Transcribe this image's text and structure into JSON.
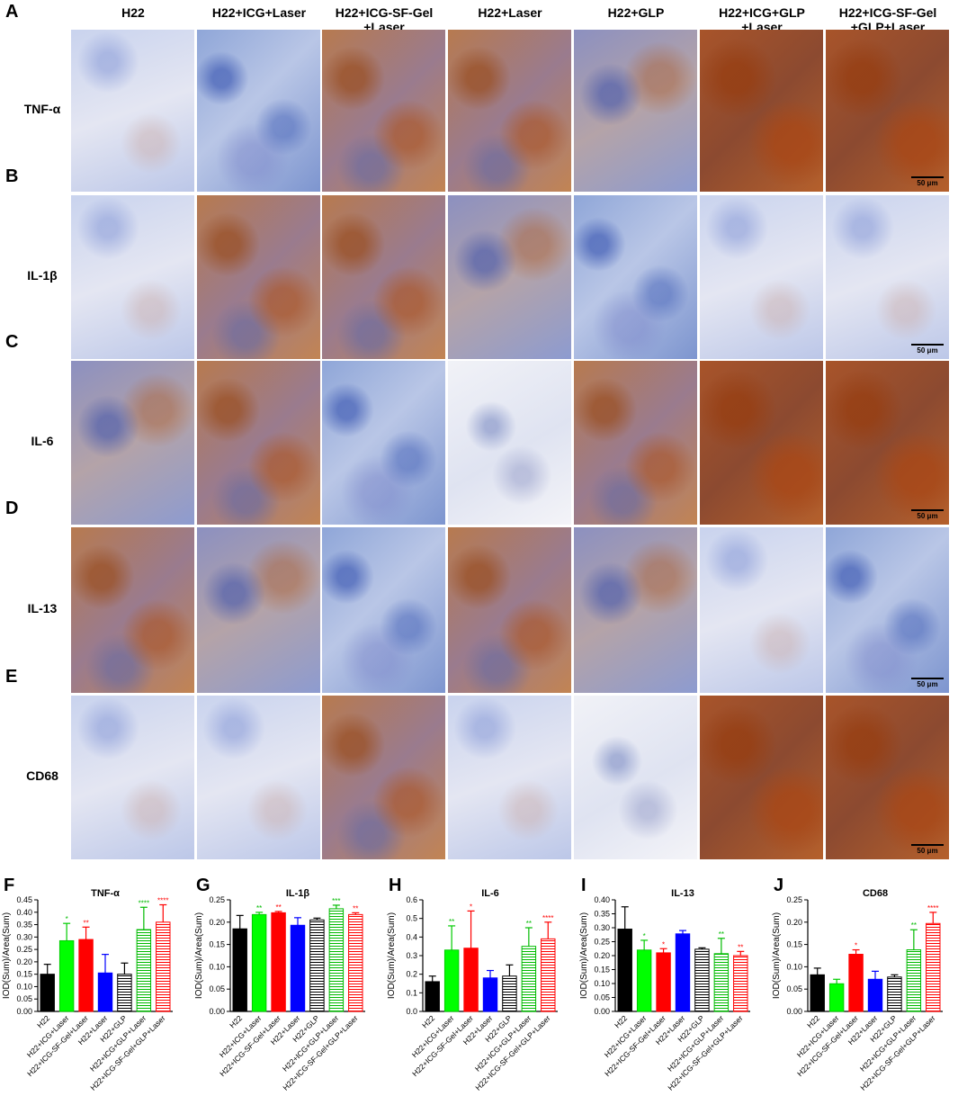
{
  "columns": [
    "H22",
    "H22+ICG+Laser",
    "H22+ICG-SF-Gel\n+Laser",
    "H22+Laser",
    "H22+GLP",
    "H22+ICG+GLP\n+Laser",
    "H22+ICG-SF-Gel\n+GLP+Laser"
  ],
  "rows": [
    {
      "letter": "A",
      "label": "TNF-α",
      "tones": [
        "pale",
        "blue",
        "brown",
        "brown",
        "mixed",
        "dark",
        "dark"
      ]
    },
    {
      "letter": "B",
      "label": "IL-1β",
      "tones": [
        "pale",
        "brown",
        "brown",
        "mixed",
        "blue",
        "pale",
        "pale"
      ]
    },
    {
      "letter": "C",
      "label": "IL-6",
      "tones": [
        "mixed",
        "brown",
        "blue",
        "light",
        "brown",
        "dark",
        "dark"
      ]
    },
    {
      "letter": "D",
      "label": "IL-13",
      "tones": [
        "brown",
        "mixed",
        "blue",
        "brown",
        "mixed",
        "pale",
        "blue"
      ]
    },
    {
      "letter": "E",
      "label": "CD68",
      "tones": [
        "pale",
        "pale",
        "brown",
        "pale",
        "light",
        "dark",
        "dark"
      ]
    }
  ],
  "scalebar": "50 μm",
  "tone_colors": {
    "blue": "#8fa6d8",
    "pale": "#d3dbef",
    "brown": "#b77a4f",
    "dark": "#a8542a",
    "mixed": "#a29ab8",
    "light": "#eceef6"
  },
  "ylabel": "IOD(Sum)/Area(Sum)",
  "chart_data": [
    {
      "letter": "F",
      "type": "bar",
      "title": "TNF-α",
      "ylabel": "IOD(Sum)/Area(Sum)",
      "ylim": [
        0,
        0.45
      ],
      "yticks": [
        "0.00",
        "0.05",
        "0.10",
        "0.15",
        "0.20",
        "0.25",
        "0.30",
        "0.35",
        "0.40",
        "0.45"
      ],
      "categories": [
        "H22",
        "H22+ICG+Laser",
        "H22+ICG-SF-Gel+Laser",
        "H22+Laser",
        "H22+GLP",
        "H22+ICG+GLP+Laser",
        "H22+ICG-SF-Gel+GLP+Laser"
      ],
      "values": [
        0.15,
        0.285,
        0.29,
        0.155,
        0.15,
        0.33,
        0.36
      ],
      "errors": [
        0.04,
        0.07,
        0.05,
        0.075,
        0.045,
        0.09,
        0.07
      ],
      "stars": [
        "",
        "*",
        "**",
        "",
        "",
        "****",
        "****"
      ]
    },
    {
      "letter": "G",
      "type": "bar",
      "title": "IL-1β",
      "ylabel": "IOD(Sum)/Area(Sum)",
      "ylim": [
        0,
        0.25
      ],
      "yticks": [
        "0.00",
        "0.05",
        "0.10",
        "0.15",
        "0.20",
        "0.25"
      ],
      "categories": [
        "H22",
        "H22+ICG+Laser",
        "H22+ICG-SF-Gel+Laser",
        "H22+Laser",
        "H22+GLP",
        "H22+ICG+GLP+Laser",
        "H22+ICG-SF-Gel+GLP+Laser"
      ],
      "values": [
        0.185,
        0.217,
        0.221,
        0.193,
        0.205,
        0.23,
        0.217
      ],
      "errors": [
        0.03,
        0.005,
        0.003,
        0.017,
        0.004,
        0.008,
        0.004
      ],
      "stars": [
        "",
        "**",
        "**",
        "",
        "",
        "***",
        "**"
      ]
    },
    {
      "letter": "H",
      "type": "bar",
      "title": "IL-6",
      "ylabel": "IOD(Sum)/Area(Sum)",
      "ylim": [
        0,
        0.6
      ],
      "yticks": [
        "0.0",
        "0.1",
        "0.2",
        "0.3",
        "0.4",
        "0.5",
        "0.6"
      ],
      "categories": [
        "H22",
        "H22+ICG+Laser",
        "H22+ICG-SF-Gel+Laser",
        "H22+Laser",
        "H22+GLP",
        "H22+ICG+GLP+Laser",
        "H22+ICG-SF-Gel+GLP+Laser"
      ],
      "values": [
        0.16,
        0.33,
        0.34,
        0.18,
        0.19,
        0.35,
        0.39
      ],
      "errors": [
        0.03,
        0.13,
        0.2,
        0.04,
        0.06,
        0.1,
        0.09
      ],
      "stars": [
        "",
        "**",
        "*",
        "",
        "",
        "**",
        "****"
      ]
    },
    {
      "letter": "I",
      "type": "bar",
      "title": "IL-13",
      "ylabel": "IOD(Sum)/Area(Sum)",
      "ylim": [
        0,
        0.4
      ],
      "yticks": [
        "0.00",
        "0.05",
        "0.10",
        "0.15",
        "0.20",
        "0.25",
        "0.30",
        "0.35",
        "0.40"
      ],
      "categories": [
        "H22",
        "H22+ICG+Laser",
        "H22+ICG-SF-Gel+Laser",
        "H22+Laser",
        "H22+GLP",
        "H22+ICG+GLP+Laser",
        "H22+ICG-SF-Gel+GLP+Laser"
      ],
      "values": [
        0.295,
        0.22,
        0.21,
        0.278,
        0.223,
        0.207,
        0.2
      ],
      "errors": [
        0.08,
        0.035,
        0.015,
        0.012,
        0.005,
        0.055,
        0.015
      ],
      "stars": [
        "",
        "*",
        "*",
        "",
        "",
        "**",
        "**"
      ]
    },
    {
      "letter": "J",
      "type": "bar",
      "title": "CD68",
      "ylabel": "IOD(Sum)/Area(Sum)",
      "ylim": [
        0,
        0.25
      ],
      "yticks": [
        "0.00",
        "0.05",
        "0.10",
        "0.15",
        "0.20",
        "0.25"
      ],
      "categories": [
        "H22",
        "H22+ICG+Laser",
        "H22+ICG-SF-Gel+Laser",
        "H22+Laser",
        "H22+GLP",
        "H22+ICG+GLP+Laser",
        "H22+ICG-SF-Gel+GLP+Laser"
      ],
      "values": [
        0.082,
        0.062,
        0.128,
        0.072,
        0.077,
        0.138,
        0.197
      ],
      "errors": [
        0.015,
        0.01,
        0.01,
        0.018,
        0.005,
        0.045,
        0.025
      ],
      "stars": [
        "",
        "",
        "*",
        "",
        "",
        "**",
        "****"
      ]
    }
  ],
  "series_styles": [
    {
      "fill": "#000000",
      "stroke": "#000000",
      "hatch": false
    },
    {
      "fill": "#00ff00",
      "stroke": "#00cc00",
      "hatch": false
    },
    {
      "fill": "#ff0000",
      "stroke": "#ff0000",
      "hatch": false
    },
    {
      "fill": "#0000ff",
      "stroke": "#0000ff",
      "hatch": false
    },
    {
      "fill": "#ffffff",
      "stroke": "#000000",
      "hatch": true
    },
    {
      "fill": "#ffffff",
      "stroke": "#00bb00",
      "hatch": true
    },
    {
      "fill": "#ffffff",
      "stroke": "#ff0000",
      "hatch": true
    }
  ],
  "star_colors": [
    "#000000",
    "#00bb00",
    "#ff0000",
    "#0000ff",
    "#000000",
    "#00bb00",
    "#ff0000"
  ]
}
